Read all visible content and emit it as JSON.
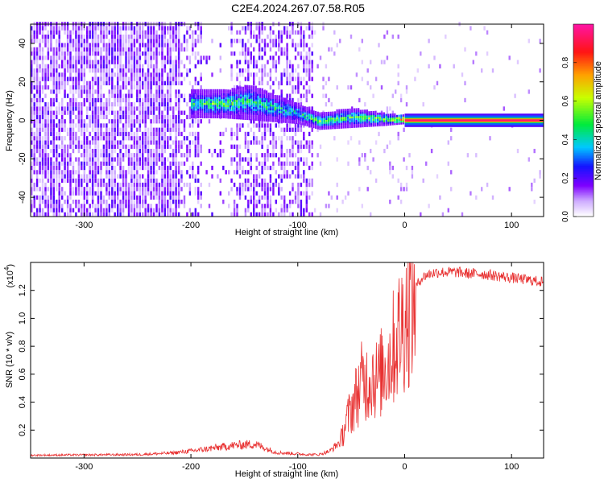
{
  "title": "C2E4.2024.267.07.58.R05",
  "chart_data": [
    {
      "type": "heatmap",
      "xlabel": "Height of straight line (km)",
      "ylabel": "Frequency (Hz)",
      "xlim": [
        -350,
        130
      ],
      "ylim": [
        -50,
        50
      ],
      "x_ticks": [
        -300,
        -200,
        -100,
        0,
        100
      ],
      "x_tick_labels": [
        "-300",
        "-200",
        "-100",
        "0",
        "100"
      ],
      "y_ticks": [
        -40,
        -20,
        0,
        20,
        40
      ],
      "y_tick_labels": [
        "-40",
        "-20",
        "0",
        "20",
        "40"
      ],
      "grid": false,
      "colorbar": {
        "label": "Normalized spectral amplitude",
        "range": [
          0,
          1
        ],
        "ticks": [
          0,
          0.2,
          0.4,
          0.6,
          0.8
        ],
        "tick_labels": [
          "0.0",
          "0.2",
          "0.4",
          "0.6",
          "0.8"
        ]
      },
      "signal_trace": [
        {
          "x": -200,
          "center": 8,
          "width": 7,
          "amplitude": 0.5
        },
        {
          "x": -170,
          "center": 8,
          "width": 7,
          "amplitude": 0.55
        },
        {
          "x": -145,
          "center": 9,
          "width": 9,
          "amplitude": 0.5
        },
        {
          "x": -100,
          "center": 3,
          "width": 5,
          "amplitude": 0.45
        },
        {
          "x": -80,
          "center": -1,
          "width": 4,
          "amplitude": 0.55
        },
        {
          "x": -50,
          "center": 1,
          "width": 5,
          "amplitude": 0.5
        },
        {
          "x": -20,
          "center": 0,
          "width": 3,
          "amplitude": 0.6
        },
        {
          "x": 0,
          "center": 0,
          "width": 2,
          "amplitude": 0.8
        },
        {
          "x": 10,
          "center": 0,
          "width": 1,
          "amplitude": 1.0
        },
        {
          "x": 130,
          "center": 0,
          "width": 1,
          "amplitude": 1.0
        }
      ]
    },
    {
      "type": "line",
      "xlabel": "Height of straight line (km)",
      "ylabel": "SNR (10 * v/v)",
      "y_multiplier": "(x10",
      "y_multiplier_exp": "4",
      "y_multiplier_close": ")",
      "xlim": [
        -350,
        130
      ],
      "ylim": [
        0,
        14000
      ],
      "x_ticks": [
        -300,
        -200,
        -100,
        0,
        100
      ],
      "x_tick_labels": [
        "-300",
        "-200",
        "-100",
        "0",
        "100"
      ],
      "y_ticks": [
        2000,
        4000,
        6000,
        8000,
        10000,
        12000
      ],
      "y_tick_labels": [
        "0.2",
        "0.4",
        "0.6",
        "0.8",
        "1.0",
        "1.2"
      ],
      "grid": false,
      "series": [
        {
          "color": "#e83030",
          "x": [
            -350,
            -250,
            -220,
            -200,
            -180,
            -160,
            -140,
            -120,
            -100,
            -90,
            -80,
            -70,
            -60,
            -55,
            -50,
            -45,
            -40,
            -35,
            -30,
            -25,
            -20,
            -15,
            -10,
            -5,
            0,
            5,
            10,
            15,
            20,
            25,
            30,
            40,
            50,
            60,
            70,
            80,
            90,
            100,
            110,
            120,
            130
          ],
          "y": [
            200,
            250,
            350,
            500,
            700,
            900,
            1000,
            400,
            300,
            250,
            250,
            500,
            1200,
            2500,
            3500,
            4500,
            5500,
            5500,
            6000,
            5500,
            6500,
            7000,
            8000,
            9000,
            10000,
            11000,
            12200,
            12800,
            13100,
            13200,
            13300,
            13300,
            13300,
            13200,
            13200,
            13100,
            13000,
            12900,
            12800,
            12700,
            12600
          ]
        }
      ]
    }
  ]
}
